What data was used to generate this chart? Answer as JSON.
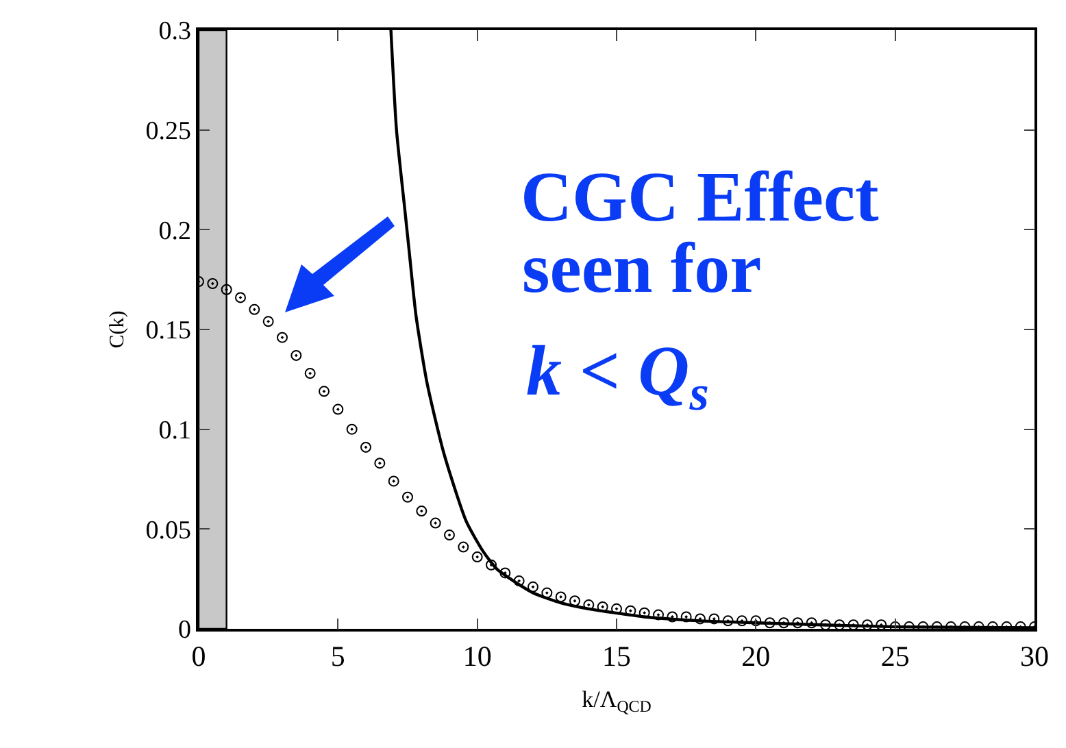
{
  "chart_data": {
    "type": "scatter",
    "xlabel": "k/Λ$_{QCD}$",
    "ylabel": "C(k)",
    "xlim": [
      0,
      30
    ],
    "xticks": [
      0,
      5,
      10,
      15,
      20,
      25,
      30
    ],
    "ylim": [
      0,
      0.3
    ],
    "yticks": [
      0,
      0.05,
      0.1,
      0.15,
      0.2,
      0.25,
      0.3
    ],
    "grid": false,
    "legend": false,
    "bands": [
      {
        "axis": "x",
        "from": 0,
        "to": 1,
        "color": "#c8c8c8"
      }
    ],
    "annotations": [
      "CGC Effect",
      "seen for",
      "k < Q$_{s}$"
    ],
    "series": [
      {
        "marker": "circle",
        "color": "#000000",
        "x": [
          0,
          0.5,
          1,
          1.5,
          2,
          2.5,
          3,
          3.5,
          4,
          4.5,
          5,
          5.5,
          6,
          6.5,
          7,
          7.5,
          8,
          8.5,
          9,
          9.5,
          10,
          10.5,
          11,
          11.5,
          12,
          12.5,
          13,
          13.5,
          14,
          14.5,
          15,
          15.5,
          16,
          16.5,
          17,
          17.5,
          18,
          18.5,
          19,
          19.5,
          20,
          20.5,
          21,
          21.5,
          22,
          22.5,
          23,
          23.5,
          24,
          24.5,
          25,
          25.5,
          26,
          26.5,
          27,
          27.5,
          28,
          28.5,
          29,
          29.5,
          30
        ],
        "values": [
          0.174,
          0.173,
          0.17,
          0.166,
          0.16,
          0.154,
          0.146,
          0.137,
          0.128,
          0.119,
          0.11,
          0.1,
          0.091,
          0.083,
          0.074,
          0.066,
          0.059,
          0.053,
          0.047,
          0.041,
          0.036,
          0.032,
          0.028,
          0.024,
          0.021,
          0.018,
          0.016,
          0.014,
          0.012,
          0.011,
          0.01,
          0.009,
          0.008,
          0.007,
          0.006,
          0.006,
          0.005,
          0.005,
          0.004,
          0.004,
          0.004,
          0.003,
          0.003,
          0.003,
          0.003,
          0.002,
          0.002,
          0.002,
          0.002,
          0.002,
          0.001,
          0.001,
          0.001,
          0.001,
          0.001,
          0.001,
          0.001,
          0.001,
          0.001,
          0.001,
          0.001
        ]
      },
      {
        "type": "line",
        "marker": "none",
        "line_style": "solid",
        "color": "#000000",
        "x": [
          6.9,
          7.1,
          7.4,
          7.55,
          7.8,
          8.2,
          8.8,
          9.6,
          10.2,
          10.7,
          11.3,
          12,
          13,
          14,
          16,
          18,
          20,
          25,
          30
        ],
        "values": [
          0.3,
          0.25,
          0.21,
          0.19,
          0.157,
          0.123,
          0.088,
          0.054,
          0.039,
          0.03,
          0.024,
          0.018,
          0.013,
          0.01,
          0.006,
          0.004,
          0.003,
          0.001,
          0.0005
        ]
      }
    ]
  }
}
